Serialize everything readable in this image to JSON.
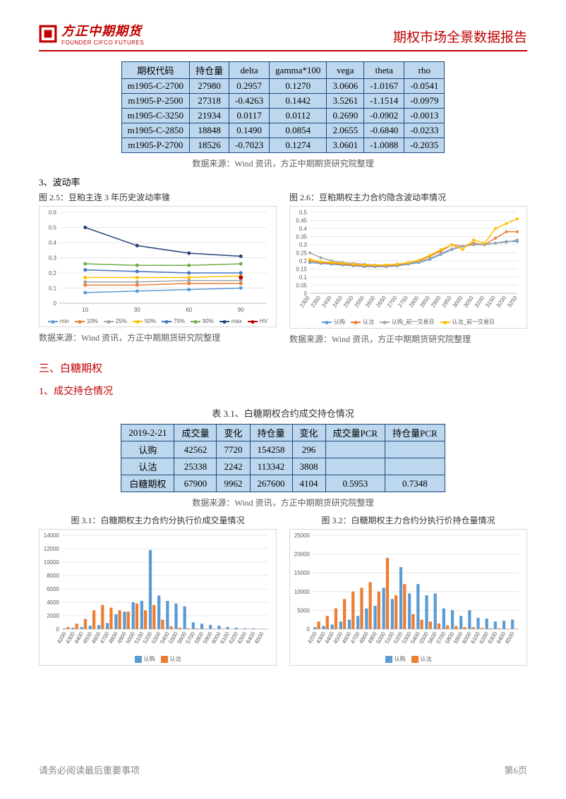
{
  "header": {
    "logo_cn": "方正中期期货",
    "logo_en": "FOUNDER CIFCO FUTURES",
    "report_title": "期权市场全景数据报告"
  },
  "table1": {
    "columns": [
      "期权代码",
      "持仓量",
      "delta",
      "gamma*100",
      "vega",
      "theta",
      "rho"
    ],
    "rows": [
      [
        "m1905-C-2700",
        "27980",
        "0.2957",
        "0.1270",
        "3.0606",
        "-1.0167",
        "-0.0541"
      ],
      [
        "m1905-P-2500",
        "27318",
        "-0.4263",
        "0.1442",
        "3.5261",
        "-1.1514",
        "-0.0979"
      ],
      [
        "m1905-C-3250",
        "21934",
        "0.0117",
        "0.0112",
        "0.2690",
        "-0.0902",
        "-0.0013"
      ],
      [
        "m1905-C-2850",
        "18848",
        "0.1490",
        "0.0854",
        "2.0655",
        "-0.6840",
        "-0.0233"
      ],
      [
        "m1905-P-2700",
        "18526",
        "-0.7023",
        "0.1274",
        "3.0601",
        "-1.0088",
        "-0.2035"
      ]
    ],
    "source": "数据来源：Wind 资讯，方正中期期货研究院整理"
  },
  "section_vol": {
    "label": "3、波动率",
    "chart25_title": "图 2.5：豆粕主连 3 年历史波动率锥",
    "chart26_title": "图 2.6：豆粕期权主力合约隐含波动率情况",
    "source_left": "数据来源：Wind 资讯，方正中期期货研究院整理",
    "source_right": "数据来源：Wind 资讯，方正中期期货研究院整理"
  },
  "chart25": {
    "type": "line",
    "x_ticks": [
      "10",
      "30",
      "60",
      "90"
    ],
    "y_ticks": [
      "0",
      "0.1",
      "0.2",
      "0.3",
      "0.4",
      "0.5",
      "0.6"
    ],
    "ylim": [
      0,
      0.6
    ],
    "series": {
      "min": {
        "color": "#5b9bd5",
        "values": [
          0.07,
          0.08,
          0.09,
          0.1
        ]
      },
      "p10": {
        "color": "#ed7d31",
        "values": [
          0.12,
          0.12,
          0.13,
          0.13
        ]
      },
      "p25": {
        "color": "#a5a5a5",
        "values": [
          0.14,
          0.14,
          0.15,
          0.15
        ]
      },
      "p50": {
        "color": "#ffc000",
        "values": [
          0.17,
          0.17,
          0.17,
          0.18
        ]
      },
      "p75": {
        "color": "#4472c4",
        "values": [
          0.22,
          0.21,
          0.2,
          0.2
        ]
      },
      "p90": {
        "color": "#70ad47",
        "values": [
          0.26,
          0.25,
          0.25,
          0.26
        ]
      },
      "max": {
        "color": "#264478",
        "values": [
          0.5,
          0.38,
          0.33,
          0.31
        ]
      }
    },
    "hv_point": {
      "color": "#c00000",
      "x_index": 3,
      "value": 0.17
    },
    "legend": [
      {
        "label": "min",
        "color": "#5b9bd5"
      },
      {
        "label": "10%",
        "color": "#ed7d31"
      },
      {
        "label": "25%",
        "color": "#a5a5a5"
      },
      {
        "label": "50%",
        "color": "#ffc000"
      },
      {
        "label": "75%",
        "color": "#4472c4"
      },
      {
        "label": "90%",
        "color": "#70ad47"
      },
      {
        "label": "max",
        "color": "#264478"
      },
      {
        "label": "HV",
        "color": "#c00000"
      }
    ]
  },
  "chart26": {
    "type": "line",
    "x_ticks": [
      "2300",
      "2350",
      "2400",
      "2450",
      "2500",
      "2550",
      "2600",
      "2650",
      "2700",
      "2750",
      "2800",
      "2850",
      "2900",
      "2950",
      "3000",
      "3050",
      "3100",
      "3150",
      "3200",
      "3250"
    ],
    "y_ticks": [
      "0",
      "0.05",
      "0.1",
      "0.15",
      "0.2",
      "0.25",
      "0.3",
      "0.35",
      "0.4",
      "0.45",
      "0.5"
    ],
    "ylim": [
      0,
      0.5
    ],
    "series": {
      "call": {
        "color": "#5b9bd5",
        "values": [
          0.19,
          0.185,
          0.18,
          0.175,
          0.17,
          0.165,
          0.165,
          0.165,
          0.17,
          0.18,
          0.19,
          0.21,
          0.24,
          0.27,
          0.29,
          0.3,
          0.3,
          0.31,
          0.32,
          0.32
        ]
      },
      "put": {
        "color": "#ed7d31",
        "values": [
          0.2,
          0.19,
          0.185,
          0.18,
          0.175,
          0.17,
          0.17,
          0.17,
          0.175,
          0.185,
          0.2,
          0.23,
          0.26,
          0.3,
          0.29,
          0.31,
          0.3,
          0.34,
          0.38,
          0.38
        ]
      },
      "call_prev": {
        "color": "#a5a5a5",
        "values": [
          0.25,
          0.22,
          0.2,
          0.19,
          0.185,
          0.18,
          0.175,
          0.175,
          0.18,
          0.185,
          0.195,
          0.215,
          0.245,
          0.275,
          0.29,
          0.3,
          0.305,
          0.31,
          0.315,
          0.33
        ]
      },
      "put_prev": {
        "color": "#ffc000",
        "values": [
          0.21,
          0.195,
          0.19,
          0.185,
          0.18,
          0.175,
          0.175,
          0.175,
          0.18,
          0.19,
          0.205,
          0.235,
          0.27,
          0.3,
          0.27,
          0.33,
          0.31,
          0.4,
          0.43,
          0.46
        ]
      }
    },
    "legend": [
      {
        "label": "认购",
        "color": "#5b9bd5"
      },
      {
        "label": "认沽",
        "color": "#ed7d31"
      },
      {
        "label": "认购_前一交易日",
        "color": "#a5a5a5"
      },
      {
        "label": "认沽_前一交易日",
        "color": "#ffc000"
      }
    ]
  },
  "section3": {
    "heading": "三、白糖期权",
    "sub": "1、成交持仓情况",
    "table_title": "表 3.1、白糖期权合约成交持仓情况"
  },
  "table2": {
    "columns": [
      "2019-2-21",
      "成交量",
      "变化",
      "持仓量",
      "变化",
      "成交量PCR",
      "持仓量PCR"
    ],
    "rows": [
      [
        "认购",
        "42562",
        "7720",
        "154258",
        "296",
        "",
        ""
      ],
      [
        "认沽",
        "25338",
        "2242",
        "113342",
        "3808",
        "",
        ""
      ],
      [
        "白糖期权",
        "67900",
        "9962",
        "267600",
        "4104",
        "0.5953",
        "0.7348"
      ]
    ],
    "source": "数据来源：Wind 资讯，方正中期期货研究院整理"
  },
  "chart31_title": "图 3.1：白糖期权主力合约分执行价成交量情况",
  "chart32_title": "图 3.2：白糖期权主力合约分执行价持仓量情况",
  "chart31": {
    "type": "bar",
    "x_ticks": [
      "4200",
      "4300",
      "4400",
      "4500",
      "4600",
      "4700",
      "4800",
      "4900",
      "5000",
      "5100",
      "5200",
      "5300",
      "5400",
      "5500",
      "5600",
      "5700",
      "5800",
      "5900",
      "6000",
      "6100",
      "6200",
      "6300",
      "6400",
      "6500"
    ],
    "y_ticks": [
      "0",
      "2000",
      "4000",
      "6000",
      "8000",
      "10000",
      "12000",
      "14000"
    ],
    "ylim": [
      0,
      14000
    ],
    "call_color": "#5b9bd5",
    "put_color": "#ed7d31",
    "call": [
      100,
      200,
      300,
      500,
      600,
      900,
      2200,
      2600,
      4000,
      4200,
      11800,
      5000,
      4200,
      3800,
      3400,
      1000,
      800,
      600,
      500,
      300,
      200,
      100,
      100,
      50
    ],
    "put": [
      300,
      800,
      1500,
      2800,
      3600,
      3200,
      2800,
      2600,
      3800,
      2800,
      3600,
      1400,
      400,
      200,
      100,
      100,
      50,
      50,
      50,
      0,
      0,
      0,
      0,
      0
    ],
    "legend": [
      {
        "label": "认购",
        "color": "#5b9bd5"
      },
      {
        "label": "认沽",
        "color": "#ed7d31"
      }
    ]
  },
  "chart32": {
    "type": "bar",
    "x_ticks": [
      "4200",
      "4300",
      "4400",
      "4500",
      "4600",
      "4700",
      "4800",
      "4900",
      "5000",
      "5100",
      "5200",
      "5300",
      "5400",
      "5500",
      "5600",
      "5700",
      "5800",
      "5900",
      "6000",
      "6100",
      "6200",
      "6300",
      "6400",
      "6500"
    ],
    "y_ticks": [
      "0",
      "5000",
      "10000",
      "15000",
      "20000",
      "25000"
    ],
    "ylim": [
      0,
      25000
    ],
    "call_color": "#5b9bd5",
    "put_color": "#ed7d31",
    "call": [
      500,
      800,
      1200,
      2000,
      2500,
      3500,
      5500,
      6200,
      11000,
      8000,
      16500,
      9500,
      12000,
      9000,
      9500,
      5500,
      5000,
      3500,
      5000,
      3000,
      2800,
      2000,
      2200,
      2500
    ],
    "put": [
      2000,
      3500,
      5500,
      8000,
      10000,
      11000,
      12500,
      10000,
      19000,
      9000,
      12000,
      4000,
      2500,
      2000,
      1500,
      1000,
      800,
      500,
      500,
      300,
      200,
      200,
      100,
      100
    ],
    "legend": [
      {
        "label": "认购",
        "color": "#5b9bd5"
      },
      {
        "label": "认沽",
        "color": "#ed7d31"
      }
    ]
  },
  "footer": {
    "left": "请务必阅读最后重要事项",
    "right": "第6页"
  }
}
